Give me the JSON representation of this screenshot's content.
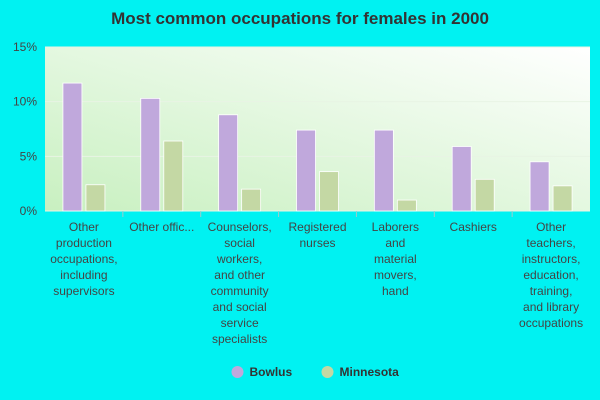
{
  "chart_data": {
    "type": "bar",
    "title": "Most common occupations for females in 2000",
    "categories": [
      "Other\nproduction\noccupations,\nincluding\nsupervisors",
      "Other offic...",
      "Counselors,\nsocial\nworkers,\nand other\ncommunity\nand social\nservice\nspecialists",
      "Registered\nnurses",
      "Laborers\nand\nmaterial\nmovers,\nhand",
      "Cashiers",
      "Other\nteachers,\ninstructors,\neducation,\ntraining,\nand library\noccupations"
    ],
    "series": [
      {
        "name": "Bowlus",
        "color": "#c0a8dc",
        "values": [
          11.7,
          10.3,
          8.8,
          7.4,
          7.4,
          5.9,
          4.5
        ]
      },
      {
        "name": "Minnesota",
        "color": "#c4d8a4",
        "values": [
          2.4,
          6.4,
          2.0,
          3.6,
          1.0,
          2.9,
          2.3
        ]
      }
    ],
    "ylim": [
      0,
      15
    ],
    "yticks": [
      {
        "value": 0,
        "label": "0%"
      },
      {
        "value": 5,
        "label": "5%"
      },
      {
        "value": 10,
        "label": "10%"
      },
      {
        "value": 15,
        "label": "15%"
      }
    ],
    "grid": true,
    "legend": "bottom"
  }
}
